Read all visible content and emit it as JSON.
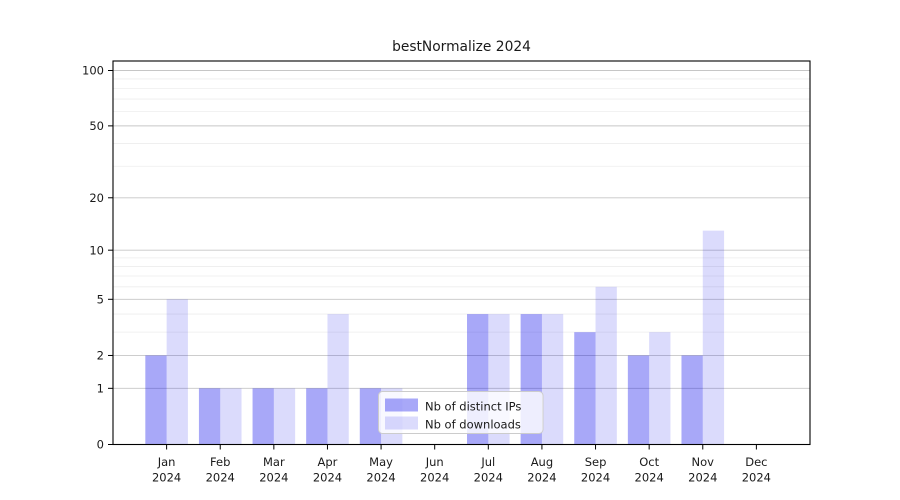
{
  "chart_data": {
    "type": "bar",
    "title": "bestNormalize 2024",
    "year_label": "2024",
    "months": [
      "Jan",
      "Feb",
      "Mar",
      "Apr",
      "May",
      "Jun",
      "Jul",
      "Aug",
      "Sep",
      "Oct",
      "Nov",
      "Dec"
    ],
    "series": [
      {
        "name": "Nb of distinct IPs",
        "color": "rgba(0,0,235,0.34)",
        "values": [
          2,
          1,
          1,
          1,
          1,
          0,
          4,
          4,
          3,
          2,
          2,
          0
        ]
      },
      {
        "name": "Nb of downloads",
        "color": "rgba(0,0,235,0.14)",
        "values": [
          5,
          1,
          1,
          4,
          1,
          0,
          4,
          4,
          6,
          3,
          13,
          0
        ]
      }
    ],
    "yscale": "log1p",
    "ylim": [
      0,
      100
    ],
    "yticks": [
      0,
      1,
      2,
      5,
      10,
      20,
      50,
      100
    ],
    "yticks_minor": [
      3,
      4,
      6,
      7,
      8,
      9,
      30,
      40,
      60,
      70,
      80,
      90
    ],
    "grid": "on",
    "legend_position": "lower center",
    "colors": {
      "major_grid": "#c6c6c6",
      "minor_grid": "#ededed",
      "spine": "#000000"
    }
  }
}
